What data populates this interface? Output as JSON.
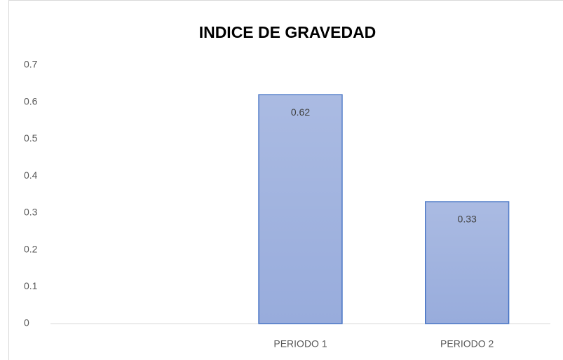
{
  "chart_data": {
    "type": "bar",
    "title": "INDICE DE GRAVEDAD",
    "categories": [
      null,
      "PERIODO 1",
      "PERIODO 2"
    ],
    "values": [
      null,
      0.62,
      0.33
    ],
    "value_labels": [
      null,
      "0.62",
      "0.33"
    ],
    "color": "#98acdc",
    "edge_color": "#4472c4",
    "ylim": [
      0,
      0.7
    ],
    "yticks": [
      0,
      0.1,
      0.2,
      0.3,
      0.4,
      0.5,
      0.6,
      0.7
    ],
    "grid": false
  }
}
